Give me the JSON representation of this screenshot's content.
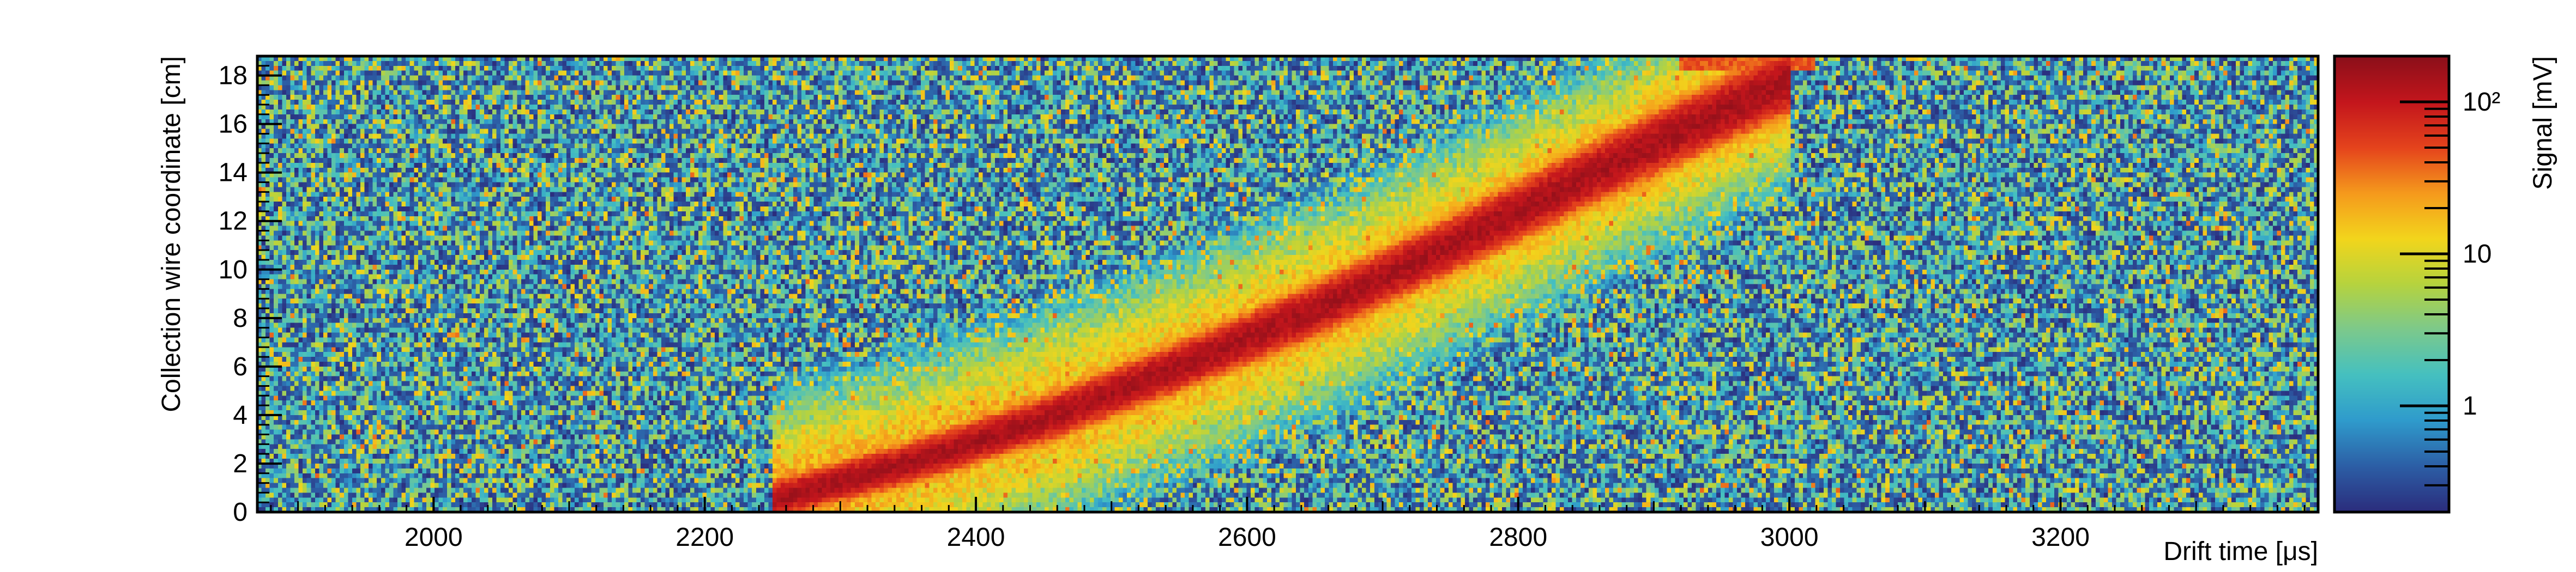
{
  "chart_data": {
    "type": "heatmap",
    "title": "",
    "xlabel": "Drift time [μs]",
    "ylabel": "Collection wire coordinate [cm]",
    "zlabel": "Signal [mV]",
    "xlim": [
      1870,
      3390
    ],
    "ylim": [
      0,
      18.8
    ],
    "x_ticks": [
      2000,
      2200,
      2400,
      2600,
      2800,
      3000,
      3200
    ],
    "x_tick_labels": [
      "2000",
      "2200",
      "2400",
      "2600",
      "2800",
      "3000",
      "3200"
    ],
    "y_ticks": [
      0,
      2,
      4,
      6,
      8,
      10,
      12,
      14,
      16,
      18
    ],
    "y_tick_labels": [
      "0",
      "2",
      "4",
      "6",
      "8",
      "10",
      "12",
      "14",
      "16",
      "18"
    ],
    "z_scale": "log",
    "zlim": [
      0.2,
      200
    ],
    "z_ticks": [
      1,
      10,
      100
    ],
    "z_tick_labels": [
      "1",
      "10",
      "10²"
    ],
    "colormap": [
      "#2b2d7d",
      "#2c5fa6",
      "#2f9bcc",
      "#45c0c0",
      "#7cc98c",
      "#b6d33e",
      "#f2d51c",
      "#f59a1c",
      "#e5441c",
      "#c4161c",
      "#8c0f1a"
    ],
    "grid": false,
    "track": {
      "description_points_x": [
        2250,
        2350,
        2450,
        2550,
        2650,
        2750,
        2850,
        2950,
        3000
      ],
      "description_points_y": [
        0.5,
        2.0,
        3.8,
        6.0,
        8.3,
        11.0,
        13.8,
        16.5,
        17.8
      ],
      "peak_signal_mV": 150
    }
  }
}
